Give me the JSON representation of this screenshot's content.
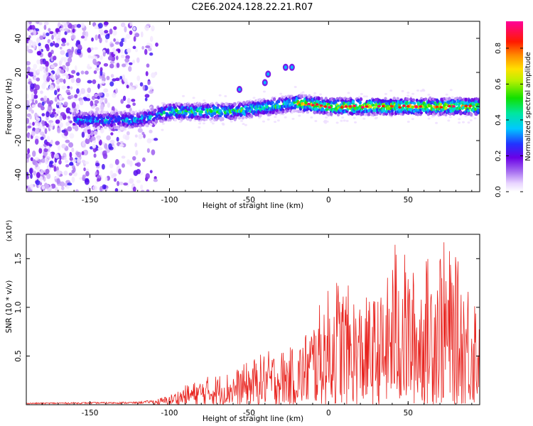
{
  "title": "C2E6.2024.128.22.21.R07",
  "chart_data": [
    {
      "type": "heatmap",
      "xlabel": "Height of straight line (km)",
      "ylabel": "Frequency (Hz)",
      "xlim": [
        -190,
        95
      ],
      "ylim": [
        -50,
        50
      ],
      "xticks": [
        -150,
        -100,
        -50,
        0,
        50
      ],
      "yticks": [
        -40,
        -20,
        0,
        20,
        40
      ],
      "grid": false,
      "colorbar": {
        "label": "Normalized spectral amplitude",
        "range": [
          0,
          0.95
        ],
        "ticks": [
          0.0,
          0.2,
          0.4,
          0.6,
          0.8
        ]
      },
      "features": {
        "main_band_center_hz": [
          {
            "x": -155,
            "y": -8
          },
          {
            "x": -120,
            "y": -8
          },
          {
            "x": -100,
            "y": -3
          },
          {
            "x": -60,
            "y": -3
          },
          {
            "x": -20,
            "y": 2
          },
          {
            "x": 0,
            "y": 0
          },
          {
            "x": 50,
            "y": 0
          },
          {
            "x": 92,
            "y": 0
          }
        ],
        "band_halfwidth_hz": 3,
        "peak_amplitude": 0.95,
        "isolated_blobs": [
          {
            "x": -56,
            "y": 10
          },
          {
            "x": -40,
            "y": 14
          },
          {
            "x": -38,
            "y": 19
          },
          {
            "x": -27,
            "y": 23
          },
          {
            "x": -23,
            "y": 23
          }
        ],
        "scattered_noise_x_range": [
          -190,
          -108
        ]
      }
    },
    {
      "type": "line",
      "xlabel": "Height of straight line (km)",
      "ylabel": "SNR (10 * v/v)",
      "y_scale_label": "(x10⁴)",
      "xlim": [
        -190,
        95
      ],
      "ylim": [
        0,
        1.75
      ],
      "xticks": [
        -150,
        -100,
        -50,
        0,
        50
      ],
      "yticks": [
        0.5,
        1.0,
        1.5
      ],
      "grid": false,
      "series": [
        {
          "color": "#e8231e",
          "x_range": [
            -190,
            95
          ],
          "envelope": [
            {
              "x": -190,
              "y": 0.02
            },
            {
              "x": -120,
              "y": 0.03
            },
            {
              "x": -110,
              "y": 0.05
            },
            {
              "x": -100,
              "y": 0.1
            },
            {
              "x": -90,
              "y": 0.2
            },
            {
              "x": -75,
              "y": 0.3
            },
            {
              "x": -60,
              "y": 0.35
            },
            {
              "x": -40,
              "y": 0.55
            },
            {
              "x": -20,
              "y": 0.6
            },
            {
              "x": -10,
              "y": 0.9
            },
            {
              "x": 5,
              "y": 1.35
            },
            {
              "x": 20,
              "y": 1.1
            },
            {
              "x": 35,
              "y": 1.15
            },
            {
              "x": 42,
              "y": 1.75
            },
            {
              "x": 55,
              "y": 1.35
            },
            {
              "x": 70,
              "y": 1.75
            },
            {
              "x": 85,
              "y": 1.4
            },
            {
              "x": 95,
              "y": 1.2
            }
          ]
        }
      ]
    }
  ]
}
